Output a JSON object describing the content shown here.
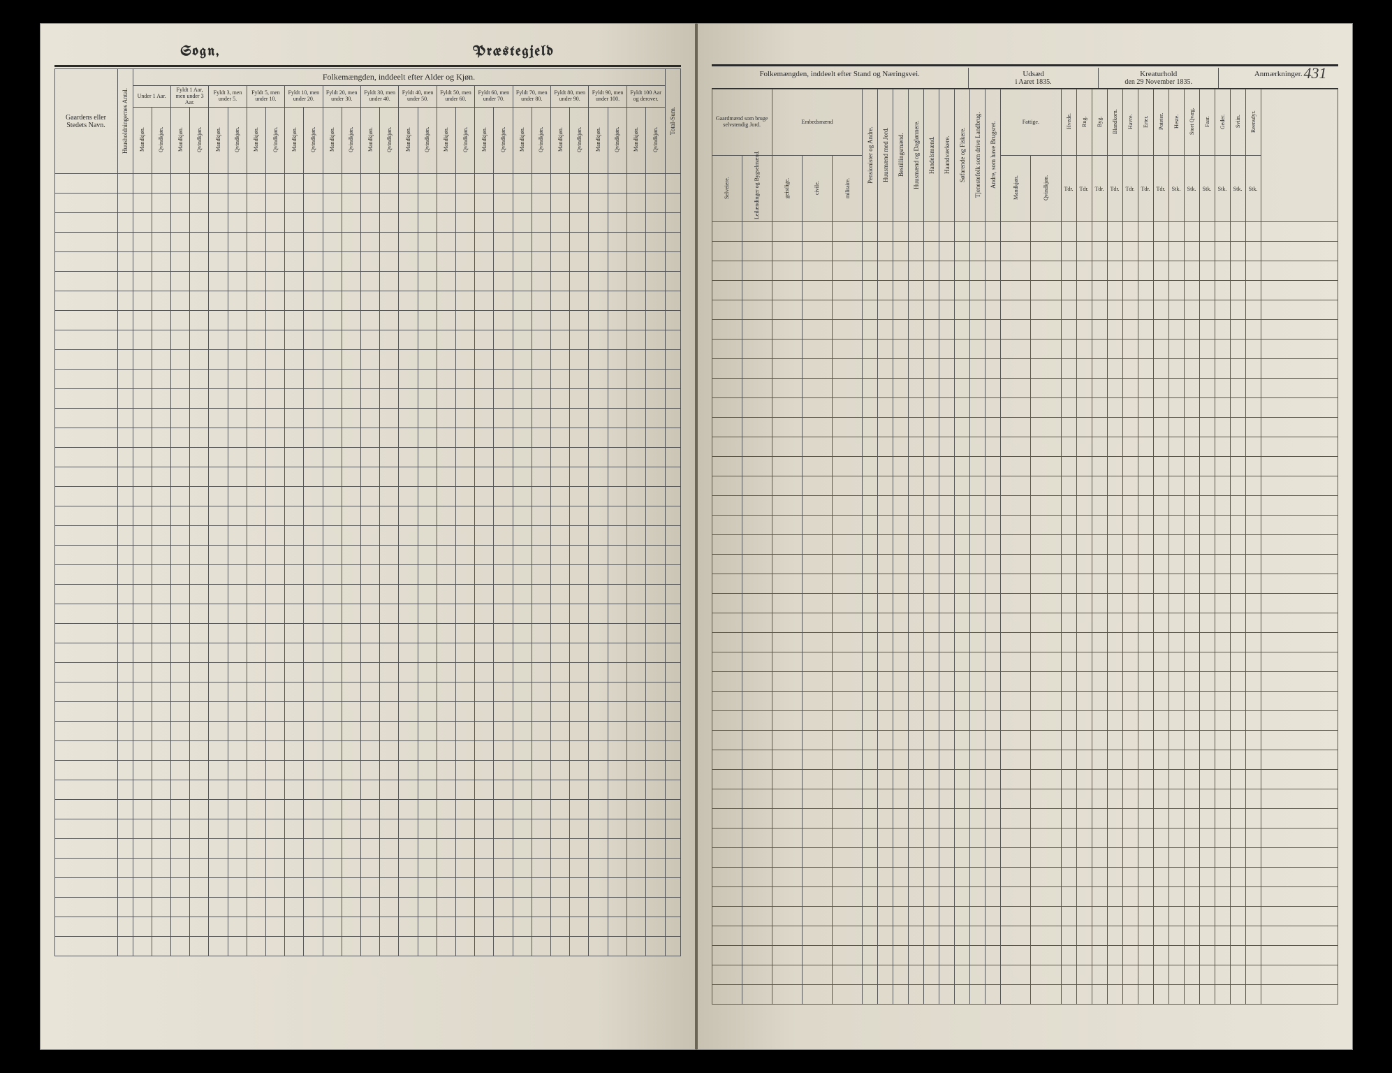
{
  "page_number_handwritten": "431",
  "left": {
    "title_left": "Sogn,",
    "title_right": "Præstegjeld",
    "section_header": "Folkemængden, inddeelt efter Alder og Kjøn.",
    "row_label_col": "Gaardens eller Stedets Navn.",
    "families_col": "Huusholdningernes Antal.",
    "age_groups": [
      {
        "top": "Under 1 Aar.",
        "mk": "Mandkjøn.",
        "qk": "Qvindkjøn."
      },
      {
        "top": "Fyldt 1 Aar, men under 3 Aar.",
        "mk": "Mandkjøn.",
        "qk": "Qvindkjøn."
      },
      {
        "top": "Fyldt 3, men under 5.",
        "mk": "Mandkjøn.",
        "qk": "Qvindkjøn."
      },
      {
        "top": "Fyldt 5, men under 10.",
        "mk": "Mandkjøn.",
        "qk": "Qvindkjøn."
      },
      {
        "top": "Fyldt 10, men under 20.",
        "mk": "Mandkjøn.",
        "qk": "Qvindkjøn."
      },
      {
        "top": "Fyldt 20, men under 30.",
        "mk": "Mandkjøn.",
        "qk": "Qvindkjøn."
      },
      {
        "top": "Fyldt 30, men under 40.",
        "mk": "Mandkjøn.",
        "qk": "Qvindkjøn."
      },
      {
        "top": "Fyldt 40, men under 50.",
        "mk": "Mandkjøn.",
        "qk": "Qvindkjøn."
      },
      {
        "top": "Fyldt 50, men under 60.",
        "mk": "Mandkjøn.",
        "qk": "Qvindkjøn."
      },
      {
        "top": "Fyldt 60, men under 70.",
        "mk": "Mandkjøn.",
        "qk": "Qvindkjøn."
      },
      {
        "top": "Fyldt 70, men under 80.",
        "mk": "Mandkjøn.",
        "qk": "Qvindkjøn."
      },
      {
        "top": "Fyldt 80, men under 90.",
        "mk": "Mandkjøn.",
        "qk": "Qvindkjøn."
      },
      {
        "top": "Fyldt 90, men under 100.",
        "mk": "Mandkjøn.",
        "qk": "Qvindkjøn."
      },
      {
        "top": "Fyldt 100 Aar og derover.",
        "mk": "Mandkjøn.",
        "qk": "Qvindkjøn."
      }
    ],
    "total_col": "Total-Sum.",
    "body_rows": 40
  },
  "right": {
    "section1_header": "Folkemængden, inddeelt efter Stand og Næringsvei.",
    "section2_header": "Udsæd",
    "section2_sub": "i Aaret 1835.",
    "section3_header": "Kreaturhold",
    "section3_sub": "den 29 November 1835.",
    "section4_header": "Anmærkninger.",
    "occupation_group1": "Gaardmænd som bruge selvstendig Jord.",
    "occupation_group1_sub": [
      "Selveiere.",
      "Leilændinger og Bygselmænd."
    ],
    "occupation_group2": "Embedsmænd",
    "occupation_group2_sub": [
      "geistlige.",
      "civile.",
      "militaire."
    ],
    "occupation_cols": [
      "Pensionister og Andre.",
      "Huusmænd med Jord.",
      "Bestillingsmænd.",
      "Huusmænd og Daglønnere.",
      "Handelsmænd.",
      "Haandværkere.",
      "Søfarende og Fiskere.",
      "Tjenestefolk som drive Landbrug.",
      "Andre, som have Brugsret.",
      "Fattige."
    ],
    "fattige_sub": [
      "Mandkjøn.",
      "Qvindkjøn."
    ],
    "seed_cols": [
      "Hvede.",
      "Rug.",
      "Byg.",
      "Blandkorn.",
      "Havre.",
      "Erter.",
      "Poteter."
    ],
    "seed_units": [
      "Tdr.",
      "Tdr.",
      "Tdr.",
      "Tdr.",
      "Tdr.",
      "Tdr.",
      "Tdr."
    ],
    "livestock_cols": [
      "Heste.",
      "Stort Qvæg.",
      "Faar.",
      "Geder.",
      "Sviin.",
      "Reensdyr."
    ],
    "livestock_units": [
      "Stk.",
      "Stk.",
      "Stk.",
      "Stk.",
      "Stk.",
      "Stk."
    ],
    "body_rows": 40
  },
  "colors": {
    "paper": "#e0dccf",
    "ink": "#2a2a2a",
    "rule": "#555555",
    "background": "#000000"
  }
}
